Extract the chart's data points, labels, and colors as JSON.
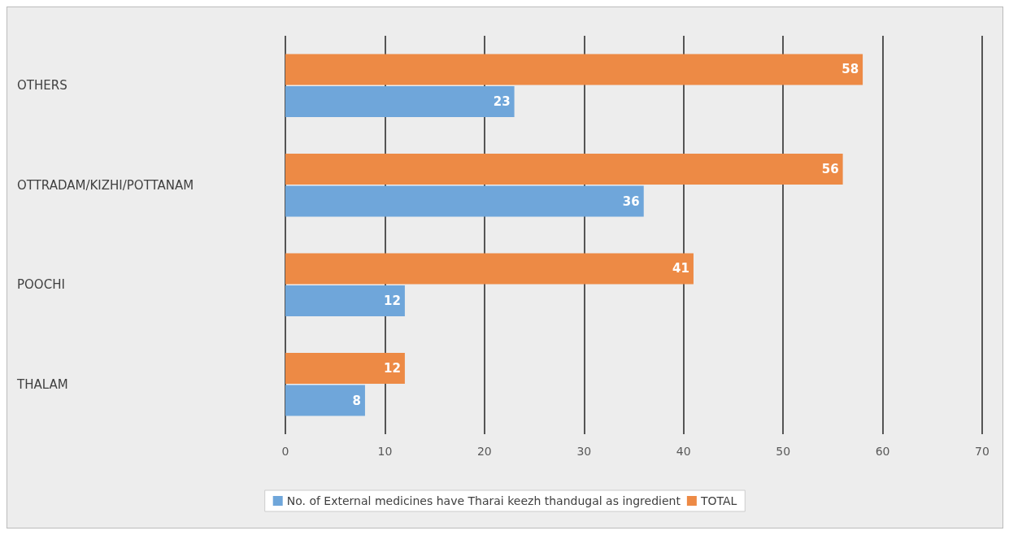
{
  "chart_data": {
    "type": "bar",
    "orientation": "horizontal",
    "categories": [
      "OTHERS",
      "OTTRADAM/KIZHI/POTTANAM",
      "POOCHI",
      "THALAM"
    ],
    "series": [
      {
        "name": "No. of External medicines have Tharai keezh thandugal as ingredient",
        "color": "#6fa6da",
        "values": [
          23,
          36,
          12,
          8
        ]
      },
      {
        "name": "TOTAL",
        "color": "#ed8a45",
        "values": [
          58,
          56,
          41,
          12
        ]
      }
    ],
    "xlim": [
      0,
      70
    ],
    "xticks": [
      0,
      10,
      20,
      30,
      40,
      50,
      60,
      70
    ],
    "grid": "x",
    "legend": "bottom",
    "data_labels": true
  }
}
